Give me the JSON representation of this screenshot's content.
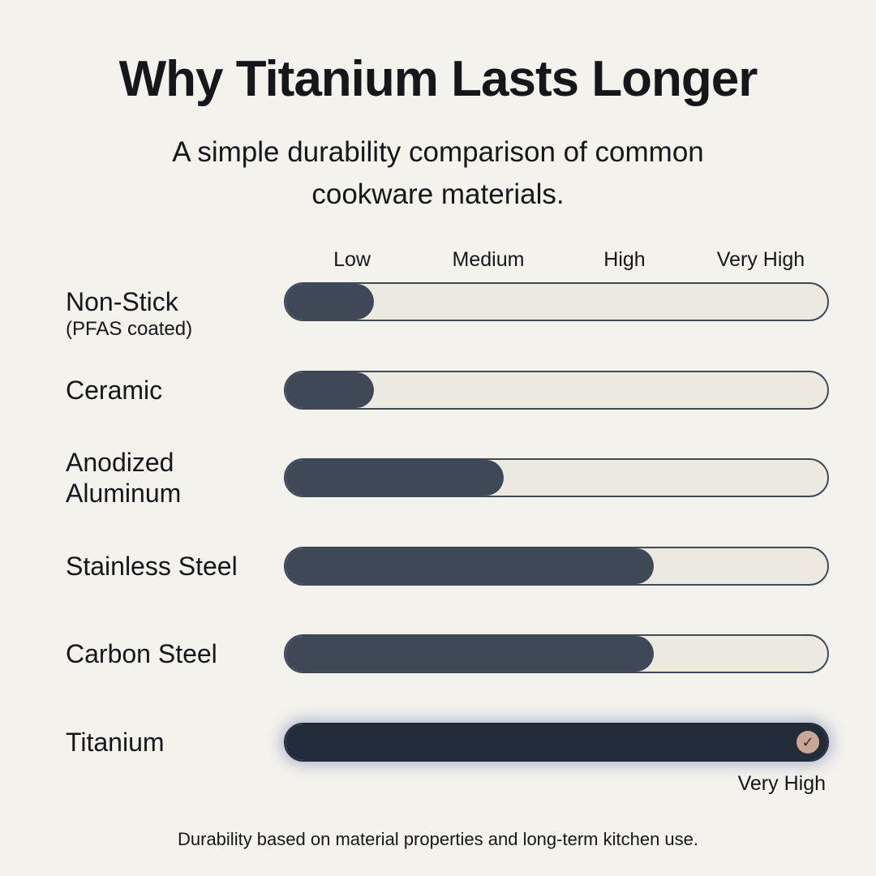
{
  "chart_data": {
    "type": "bar",
    "orientation": "horizontal",
    "title": "Why Titanium Lasts Longer",
    "subtitle": "A simple durability comparison of common cookware materials.",
    "categories": [
      "Non-Stick",
      "Ceramic",
      "Anodized Aluminum",
      "Stainless Steel",
      "Carbon Steel",
      "Titanium"
    ],
    "category_notes": [
      "(PFAS coated)",
      null,
      null,
      null,
      null,
      null
    ],
    "values": [
      0.65,
      0.65,
      1.6,
      2.7,
      2.7,
      4
    ],
    "colors": [
      "#3e4857",
      "#3e4857",
      "#3e4857",
      "#3e4857",
      "#3e4857",
      "#222b3a"
    ],
    "xlim": [
      0,
      4
    ],
    "xticks": [
      {
        "value": 0.5,
        "label": "Low"
      },
      {
        "value": 1.5,
        "label": "Medium"
      },
      {
        "value": 2.5,
        "label": "High"
      },
      {
        "value": 3.5,
        "label": "Very High"
      }
    ],
    "annotation": "Very High",
    "footnote": "Durability based on material properties and long-term kitchen use."
  }
}
